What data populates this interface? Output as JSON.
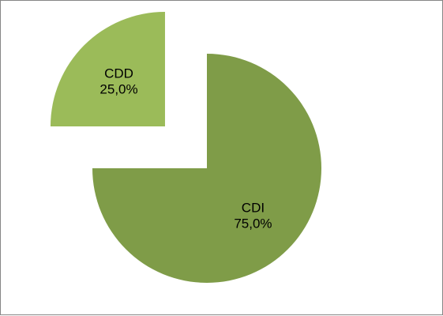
{
  "chart_data": {
    "type": "pie",
    "title": "",
    "slices": [
      {
        "label": "CDI",
        "value": 75.0,
        "percent_label": "75,0%",
        "color": "#7f9c48",
        "exploded": false
      },
      {
        "label": "CDD",
        "value": 25.0,
        "percent_label": "25,0%",
        "color": "#9bbb59",
        "exploded": true
      }
    ],
    "start_angle_deg": 0,
    "direction": "clockwise",
    "legend": "none",
    "border_color": "#868686"
  }
}
